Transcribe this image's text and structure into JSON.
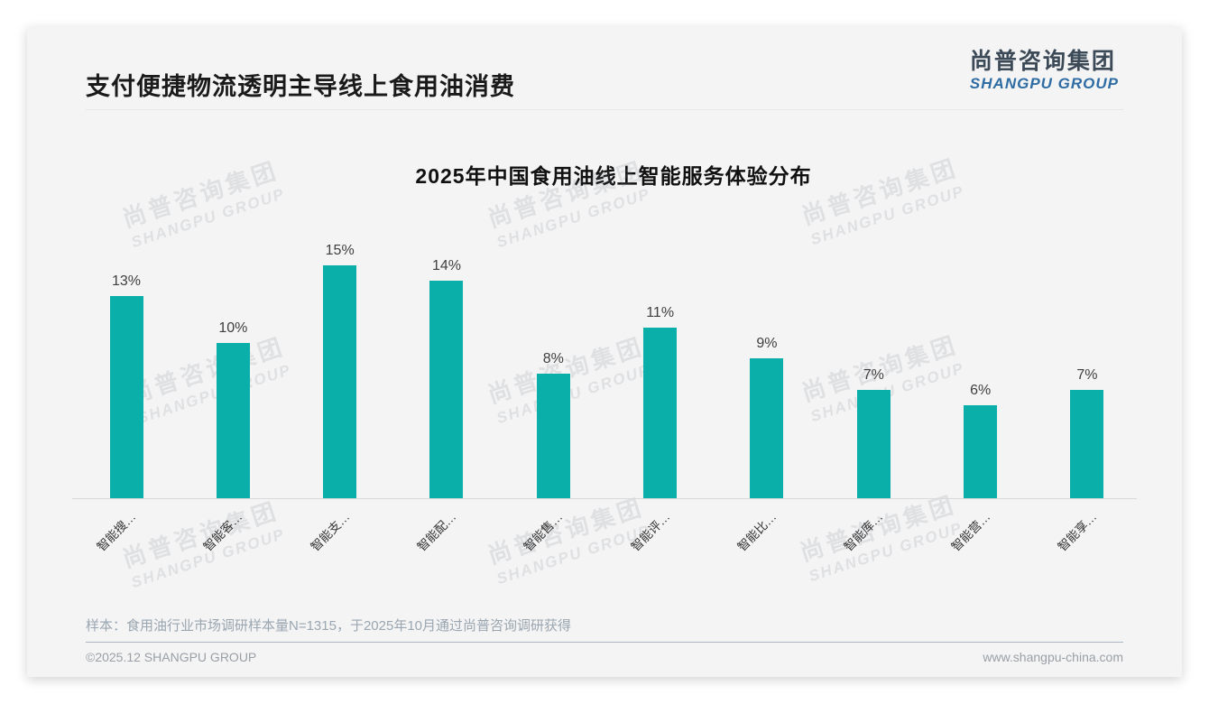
{
  "page": {
    "title": "支付便捷物流透明主导线上食用油消费",
    "logo": {
      "cn": "尚普咨询集团",
      "en": "SHANGPU GROUP"
    },
    "watermark": {
      "cn": "尚普咨询集团",
      "en": "SHANGPU GROUP"
    },
    "footnote": "样本：食用油行业市场调研样本量N=1315，于2025年10月通过尚普咨询调研获得",
    "footer": {
      "copyright": "©2025.12 SHANGPU GROUP",
      "website": "www.shangpu-china.com"
    }
  },
  "colors": {
    "bar": "#0bafa9",
    "card_background": "#f4f4f5",
    "logo_blue": "#2e6ca3",
    "title_text": "#1a1a1a",
    "footnote_text": "#9aa6b0"
  },
  "chart_data": {
    "type": "bar",
    "title": "2025年中国食用油线上智能服务体验分布",
    "categories": [
      "智能搜…",
      "智能客…",
      "智能支…",
      "智能配…",
      "智能售…",
      "智能评…",
      "智能比…",
      "智能库…",
      "智能营…",
      "智能享…"
    ],
    "values": [
      13,
      10,
      15,
      14,
      8,
      11,
      9,
      7,
      6,
      7
    ],
    "data_labels": [
      "13%",
      "10%",
      "15%",
      "14%",
      "8%",
      "11%",
      "9%",
      "7%",
      "6%",
      "7%"
    ],
    "unit": "%",
    "xlabel": "",
    "ylabel": "",
    "ylim": [
      0,
      16
    ],
    "grid": false,
    "legend": "none",
    "x_label_rotation": 45,
    "bar_color": "#0bafa9"
  }
}
